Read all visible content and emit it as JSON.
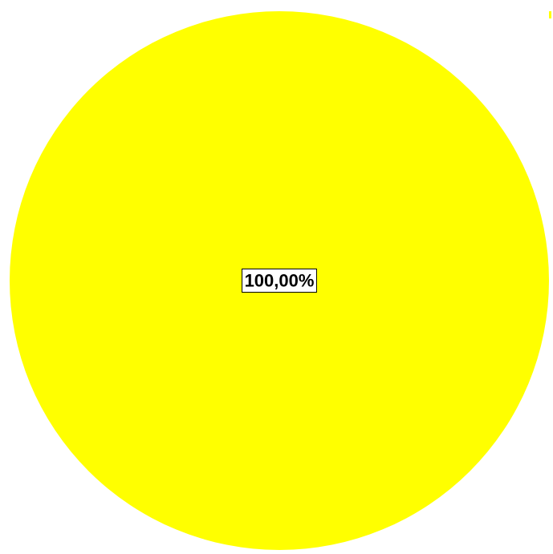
{
  "chart_data": {
    "type": "pie",
    "title": "",
    "slices": [
      {
        "name": "",
        "value": 100.0,
        "color": "#FFFF00",
        "label": "100,00%"
      }
    ],
    "legend": {
      "placement": "top-right",
      "entries": [
        {
          "name": "",
          "color": "#FFFF00"
        }
      ]
    }
  }
}
